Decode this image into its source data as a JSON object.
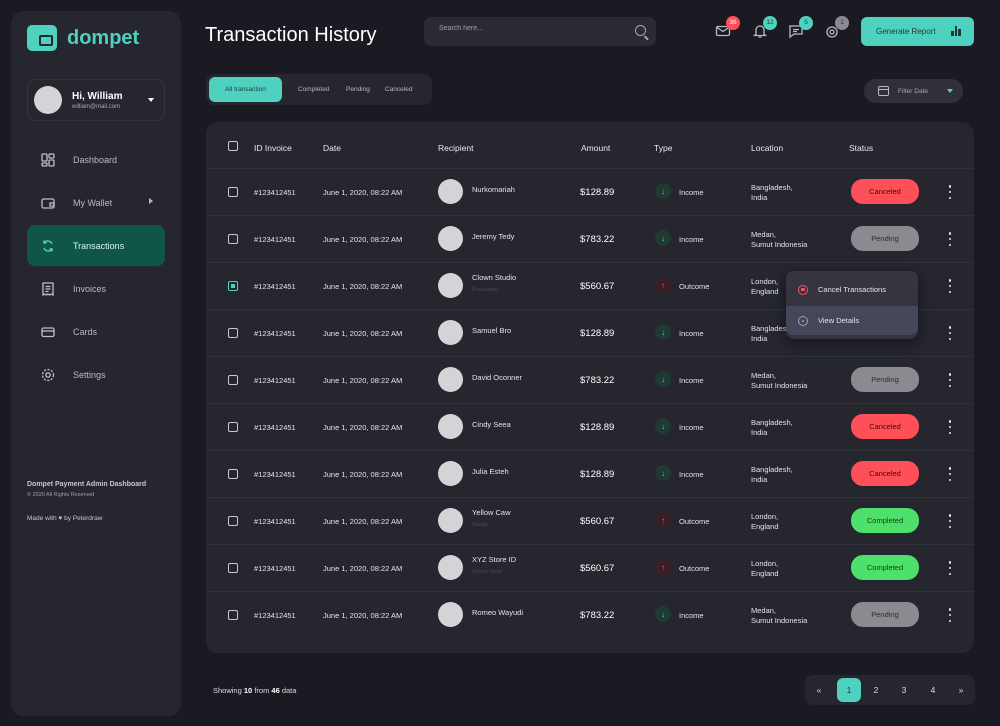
{
  "brand": {
    "name": "dompet"
  },
  "user": {
    "name": "Hi, William",
    "email": "william@mail.com"
  },
  "nav": [
    {
      "label": "Dashboard",
      "icon": "dashboard-icon"
    },
    {
      "label": "My Wallet",
      "icon": "wallet-icon"
    },
    {
      "label": "Transactions",
      "icon": "transactions-icon"
    },
    {
      "label": "Invoices",
      "icon": "invoices-icon"
    },
    {
      "label": "Cards",
      "icon": "cards-icon"
    },
    {
      "label": "Settings",
      "icon": "settings-icon"
    }
  ],
  "footer": {
    "title": "Dompet Payment Admin Dashboard",
    "copyright": "© 2020 All Rights Reserved",
    "made": "Made with ♥ by Peterdraw"
  },
  "header": {
    "title": "Transaction History",
    "search_placeholder": "Search here...",
    "notifications": [
      {
        "icon": "mail-icon",
        "count": "36",
        "color": "#ff4f58"
      },
      {
        "icon": "bell-icon",
        "count": "12",
        "color": "#4fd1c0"
      },
      {
        "icon": "chat-icon",
        "count": "5",
        "color": "#4fd1c0"
      },
      {
        "icon": "gift-icon",
        "count": "1",
        "color": "#8a8b90"
      }
    ],
    "generate_report": "Generate Report"
  },
  "filters": {
    "tabs": [
      "All transaction",
      "Completed",
      "Pending",
      "Canceled"
    ],
    "active": "All transaction",
    "date_label": "Filter Date"
  },
  "table": {
    "columns": [
      "ID Invoice",
      "Date",
      "Recipient",
      "Amount",
      "Type",
      "Location",
      "Status"
    ],
    "rows": [
      {
        "id": "#123412451",
        "date": "June 1, 2020, 08:22 AM",
        "recipient": "Nurkomariah",
        "sub": "",
        "amount": "$128.89",
        "type": "Income",
        "loc1": "Bangladesh,",
        "loc2": "India",
        "status": "Canceled"
      },
      {
        "id": "#123412451",
        "date": "June 1, 2020, 08:22 AM",
        "recipient": "Jeremy Tedy",
        "sub": "",
        "amount": "$783.22",
        "type": "Income",
        "loc1": "Medan,",
        "loc2": "Sumut Indonesia",
        "status": "Pending"
      },
      {
        "id": "#123412451",
        "date": "June 1, 2020, 08:22 AM",
        "recipient": "Clown Studio",
        "sub": "Freelancer",
        "amount": "$560.67",
        "type": "Outcome",
        "loc1": "London,",
        "loc2": "England",
        "status": ""
      },
      {
        "id": "#123412451",
        "date": "June 1, 2020, 08:22 AM",
        "recipient": "Samuel Bro",
        "sub": "",
        "amount": "$128.89",
        "type": "Income",
        "loc1": "Banglades",
        "loc2": "India",
        "status": ""
      },
      {
        "id": "#123412451",
        "date": "June 1, 2020, 08:22 AM",
        "recipient": "David Oconner",
        "sub": "",
        "amount": "$783.22",
        "type": "Income",
        "loc1": "Medan,",
        "loc2": "Sumut Indonesia",
        "status": "Pending"
      },
      {
        "id": "#123412451",
        "date": "June 1, 2020, 08:22 AM",
        "recipient": "Cindy Seea",
        "sub": "",
        "amount": "$128.89",
        "type": "Income",
        "loc1": "Bangladesh,",
        "loc2": "India",
        "status": "Canceled"
      },
      {
        "id": "#123412451",
        "date": "June 1, 2020, 08:22 AM",
        "recipient": "Julia Esteh",
        "sub": "",
        "amount": "$128.89",
        "type": "Income",
        "loc1": "Bangladesh,",
        "loc2": "India",
        "status": "Canceled"
      },
      {
        "id": "#123412451",
        "date": "June 1, 2020, 08:22 AM",
        "recipient": "Yellow Caw",
        "sub": "Studio",
        "amount": "$560.67",
        "type": "Outcome",
        "loc1": "London,",
        "loc2": "England",
        "status": "Completed"
      },
      {
        "id": "#123412451",
        "date": "June 1, 2020, 08:22 AM",
        "recipient": "XYZ Store ID",
        "sub": "Online Shop",
        "amount": "$560.67",
        "type": "Outcome",
        "loc1": "London,",
        "loc2": "England",
        "status": "Completed"
      },
      {
        "id": "#123412451",
        "date": "June 1, 2020, 08:22 AM",
        "recipient": "Romeo Wayudi",
        "sub": "",
        "amount": "$783.22",
        "type": "Income",
        "loc1": "Medan,",
        "loc2": "Sumut Indonesia",
        "status": "Pending"
      }
    ]
  },
  "context_menu": {
    "items": [
      "Cancel Transactions",
      "View Details"
    ]
  },
  "pagination": {
    "showing_prefix": "Showing",
    "shown": "10",
    "from_word": "from",
    "total": "46",
    "suffix": "data",
    "pages": [
      "1",
      "2",
      "3",
      "4"
    ],
    "active": "1"
  }
}
